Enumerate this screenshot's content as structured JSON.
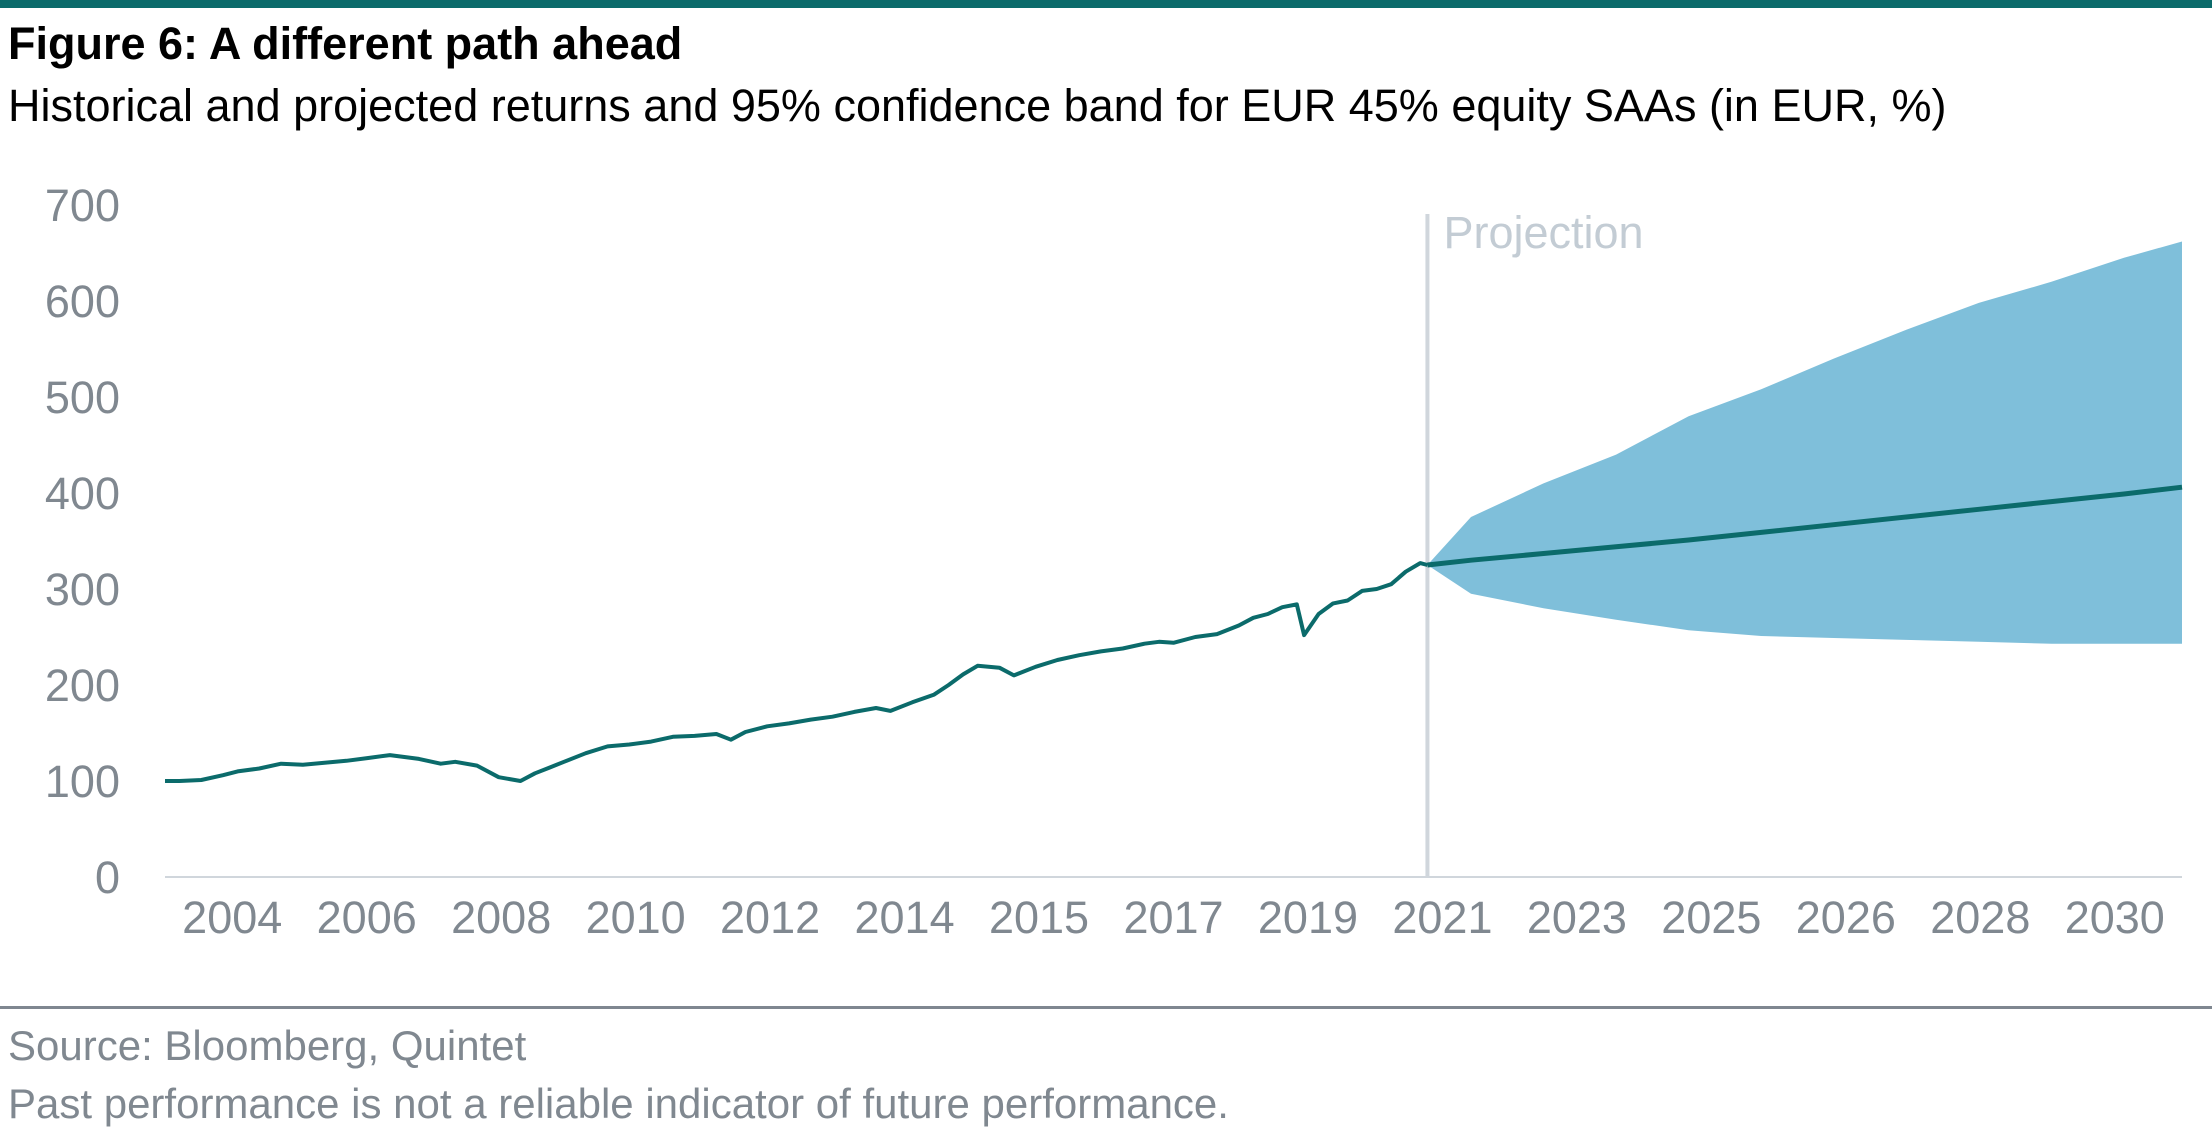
{
  "header": {
    "title": "Figure 6: A different path ahead",
    "subtitle": "Historical and projected returns and 95% confidence band for EUR 45% equity SAAs (in EUR, %)"
  },
  "footer": {
    "source": "Source: Bloomberg, Quintet",
    "disclaimer": "Past performance is not a reliable indicator of future performance."
  },
  "colors": {
    "line": "#0b6b6b",
    "band": "#7fbfda",
    "divider": "#d0d6dc",
    "axis_text": "#808890",
    "projection_label": "#c3ccd4"
  },
  "chart_data": {
    "type": "line",
    "title": "",
    "xlabel": "",
    "ylabel": "",
    "ylim": [
      0,
      700
    ],
    "yticks": [
      0,
      100,
      200,
      300,
      400,
      500,
      600,
      700
    ],
    "xticks": [
      "2004",
      "2006",
      "2008",
      "2010",
      "2012",
      "2014",
      "2015",
      "2017",
      "2019",
      "2021",
      "2023",
      "2025",
      "2026",
      "2028",
      "2030"
    ],
    "grid": false,
    "legend": "none",
    "annotation": "Projection",
    "x_range": [
      2004.0,
      2031.8
    ],
    "projection_start": 2021.4,
    "historical": {
      "x": [
        2004.0,
        2004.2,
        2004.5,
        2004.8,
        2005.0,
        2005.3,
        2005.6,
        2005.9,
        2006.2,
        2006.5,
        2006.8,
        2007.1,
        2007.3,
        2007.5,
        2007.8,
        2008.0,
        2008.3,
        2008.6,
        2008.9,
        2009.1,
        2009.3,
        2009.5,
        2009.8,
        2010.1,
        2010.4,
        2010.7,
        2011.0,
        2011.3,
        2011.6,
        2011.8,
        2012.0,
        2012.3,
        2012.6,
        2012.9,
        2013.2,
        2013.5,
        2013.8,
        2014.0,
        2014.3,
        2014.6,
        2014.8,
        2015.0,
        2015.2,
        2015.5,
        2015.7,
        2016.0,
        2016.3,
        2016.6,
        2016.9,
        2017.2,
        2017.5,
        2017.7,
        2017.9,
        2018.2,
        2018.5,
        2018.8,
        2019.0,
        2019.2,
        2019.4,
        2019.6,
        2019.7,
        2019.9,
        2020.1,
        2020.3,
        2020.5,
        2020.7,
        2020.9,
        2021.1,
        2021.3,
        2021.4
      ],
      "values": [
        100,
        100,
        101,
        106,
        110,
        113,
        118,
        117,
        119,
        121,
        124,
        127,
        125,
        123,
        118,
        120,
        116,
        104,
        100,
        108,
        114,
        120,
        129,
        136,
        138,
        141,
        146,
        147,
        149,
        143,
        151,
        157,
        160,
        164,
        167,
        172,
        176,
        173,
        182,
        190,
        200,
        211,
        220,
        218,
        210,
        219,
        226,
        231,
        235,
        238,
        243,
        245,
        244,
        250,
        253,
        262,
        270,
        274,
        281,
        284,
        252,
        274,
        285,
        288,
        298,
        300,
        305,
        318,
        327,
        325
      ]
    },
    "projection": {
      "x": [
        2021.4,
        2022.0,
        2023.0,
        2024.0,
        2025.0,
        2026.0,
        2027.0,
        2028.0,
        2029.0,
        2030.0,
        2031.0,
        2031.8
      ],
      "median": [
        325,
        330,
        337,
        344,
        351,
        359,
        367,
        375,
        383,
        391,
        399,
        406
      ],
      "upper": [
        325,
        375,
        410,
        440,
        480,
        508,
        540,
        570,
        598,
        620,
        645,
        662
      ],
      "lower": [
        325,
        295,
        280,
        268,
        257,
        251,
        249,
        247,
        245,
        243,
        243,
        243
      ]
    }
  }
}
